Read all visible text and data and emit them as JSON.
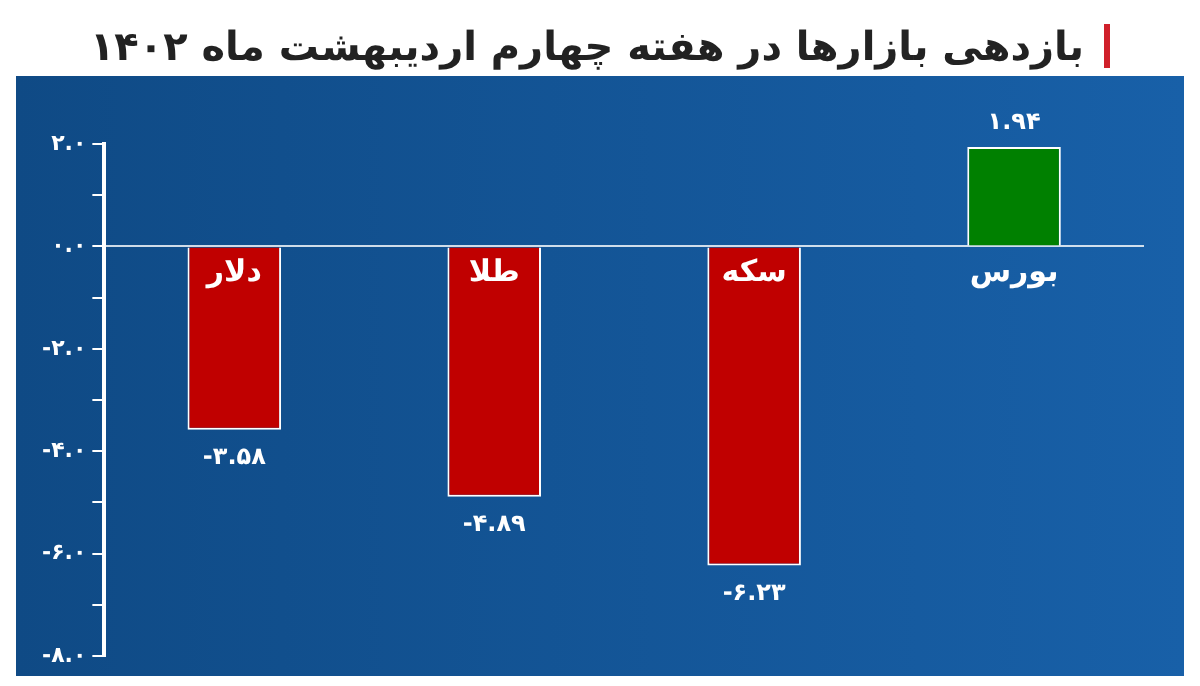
{
  "chart_data": {
    "type": "bar",
    "title": "بازدهی بازارها در هفته چهارم اردیبهشت ماه ۱۴۰۲",
    "categories": [
      "دلار",
      "طلا",
      "سکه",
      "بورس"
    ],
    "values": [
      -3.58,
      -4.89,
      -6.23,
      1.94
    ],
    "colors": [
      "#c00000",
      "#c00000",
      "#c00000",
      "#008000"
    ],
    "value_labels": [
      "-۳.۵۸",
      "-۴.۸۹",
      "-۶.۲۳",
      "۱.۹۴"
    ],
    "ylim": [
      -8,
      2
    ],
    "yticks": [
      {
        "value": 2,
        "label": "۲.۰"
      },
      {
        "value": 1,
        "label": null
      },
      {
        "value": 0,
        "label": "۰.۰"
      },
      {
        "value": -1,
        "label": null
      },
      {
        "value": -2,
        "label": "-۲.۰"
      },
      {
        "value": -3,
        "label": null
      },
      {
        "value": -4,
        "label": "-۴.۰"
      },
      {
        "value": -5,
        "label": null
      },
      {
        "value": -6,
        "label": "-۶.۰"
      },
      {
        "value": -7,
        "label": null
      },
      {
        "value": -8,
        "label": "-۸.۰"
      }
    ]
  }
}
